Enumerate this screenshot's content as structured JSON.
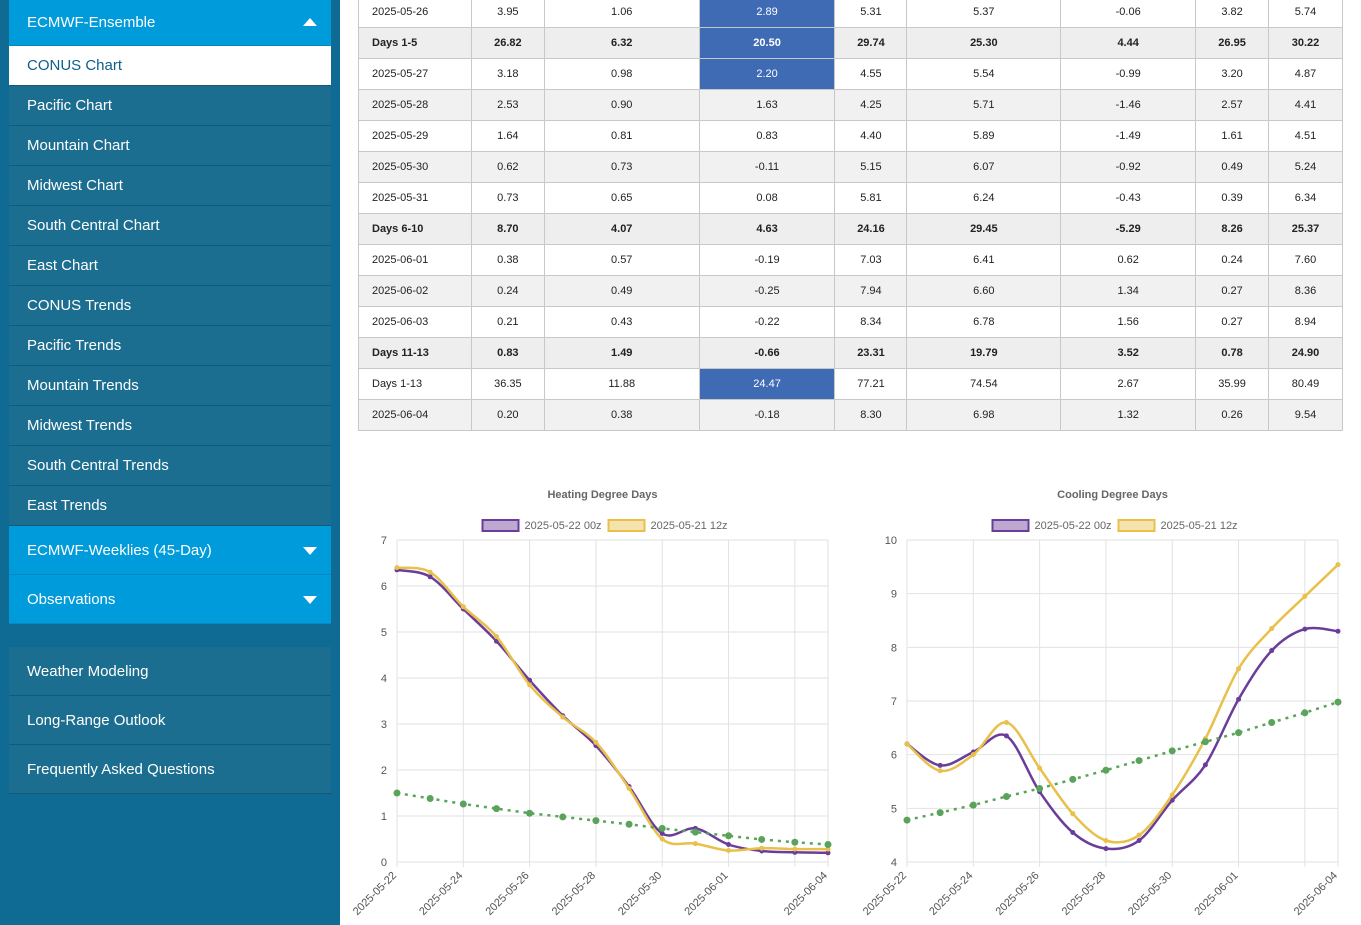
{
  "sidebar": {
    "header": "ECMWF-Ensemble",
    "active_item": "CONUS Chart",
    "items": [
      "Pacific Chart",
      "Mountain Chart",
      "Midwest Chart",
      "South Central Chart",
      "East Chart",
      "CONUS Trends",
      "Pacific Trends",
      "Mountain Trends",
      "Midwest Trends",
      "South Central Trends",
      "East Trends"
    ],
    "weeklies": "ECMWF-Weeklies (45-Day)",
    "observations": "Observations",
    "bottom_items": [
      "Weather Modeling",
      "Long-Range Outlook",
      "Frequently Asked Questions"
    ]
  },
  "table": {
    "rows": [
      {
        "cells": [
          "2025-05-26",
          "3.95",
          "1.06",
          "2.89",
          "5.31",
          "5.37",
          "-0.06",
          "3.82",
          "5.74"
        ],
        "kind": "normal",
        "hl": true
      },
      {
        "cells": [
          "Days 1-5",
          "26.82",
          "6.32",
          "20.50",
          "29.74",
          "25.30",
          "4.44",
          "26.95",
          "30.22"
        ],
        "kind": "sum",
        "hl": true
      },
      {
        "cells": [
          "2025-05-27",
          "3.18",
          "0.98",
          "2.20",
          "4.55",
          "5.54",
          "-0.99",
          "3.20",
          "4.87"
        ],
        "kind": "normal",
        "hl": true
      },
      {
        "cells": [
          "2025-05-28",
          "2.53",
          "0.90",
          "1.63",
          "4.25",
          "5.71",
          "-1.46",
          "2.57",
          "4.41"
        ],
        "kind": "alt",
        "hl": false
      },
      {
        "cells": [
          "2025-05-29",
          "1.64",
          "0.81",
          "0.83",
          "4.40",
          "5.89",
          "-1.49",
          "1.61",
          "4.51"
        ],
        "kind": "normal",
        "hl": false
      },
      {
        "cells": [
          "2025-05-30",
          "0.62",
          "0.73",
          "-0.11",
          "5.15",
          "6.07",
          "-0.92",
          "0.49",
          "5.24"
        ],
        "kind": "alt",
        "hl": false
      },
      {
        "cells": [
          "2025-05-31",
          "0.73",
          "0.65",
          "0.08",
          "5.81",
          "6.24",
          "-0.43",
          "0.39",
          "6.34"
        ],
        "kind": "normal",
        "hl": false
      },
      {
        "cells": [
          "Days 6-10",
          "8.70",
          "4.07",
          "4.63",
          "24.16",
          "29.45",
          "-5.29",
          "8.26",
          "25.37"
        ],
        "kind": "sum",
        "hl": false
      },
      {
        "cells": [
          "2025-06-01",
          "0.38",
          "0.57",
          "-0.19",
          "7.03",
          "6.41",
          "0.62",
          "0.24",
          "7.60"
        ],
        "kind": "normal",
        "hl": false
      },
      {
        "cells": [
          "2025-06-02",
          "0.24",
          "0.49",
          "-0.25",
          "7.94",
          "6.60",
          "1.34",
          "0.27",
          "8.36"
        ],
        "kind": "alt",
        "hl": false
      },
      {
        "cells": [
          "2025-06-03",
          "0.21",
          "0.43",
          "-0.22",
          "8.34",
          "6.78",
          "1.56",
          "0.27",
          "8.94"
        ],
        "kind": "normal",
        "hl": false
      },
      {
        "cells": [
          "Days 11-13",
          "0.83",
          "1.49",
          "-0.66",
          "23.31",
          "19.79",
          "3.52",
          "0.78",
          "24.90"
        ],
        "kind": "sum",
        "hl": false
      },
      {
        "cells": [
          "Days 1-13",
          "36.35",
          "11.88",
          "24.47",
          "77.21",
          "74.54",
          "2.67",
          "35.99",
          "80.49"
        ],
        "kind": "normal",
        "hl": true
      },
      {
        "cells": [
          "2025-06-04",
          "0.20",
          "0.38",
          "-0.18",
          "8.30",
          "6.98",
          "1.32",
          "0.26",
          "9.54"
        ],
        "kind": "alt",
        "hl": false
      }
    ]
  },
  "colors": {
    "purple": "#6a3d9a",
    "gold": "#e8c04a",
    "green": "#5aa35a",
    "highlight": "#3f6ab4",
    "sidebar": "#0f6b94",
    "accent": "#009bdb"
  },
  "chart_data": [
    {
      "type": "line",
      "title": "Heating Degree Days",
      "x": [
        "2025-05-22",
        "2025-05-23",
        "2025-05-24",
        "2025-05-25",
        "2025-05-26",
        "2025-05-27",
        "2025-05-28",
        "2025-05-29",
        "2025-05-30",
        "2025-05-31",
        "2025-06-01",
        "2025-06-02",
        "2025-06-03",
        "2025-06-04"
      ],
      "xticks": [
        "2025-05-22",
        "2025-05-24",
        "2025-05-26",
        "2025-05-28",
        "2025-05-30",
        "2025-06-01",
        "2025-06-04"
      ],
      "ylim": [
        0,
        7
      ],
      "yticks": [
        0,
        1,
        2,
        3,
        4,
        5,
        6,
        7
      ],
      "grid": true,
      "legend": "top",
      "series": [
        {
          "name": "2025-05-22 00z",
          "color": "#6a3d9a",
          "style": "solid",
          "values": [
            6.35,
            6.2,
            5.5,
            4.8,
            3.95,
            3.18,
            2.53,
            1.64,
            0.62,
            0.73,
            0.38,
            0.24,
            0.21,
            0.2
          ]
        },
        {
          "name": "2025-05-21 12z",
          "color": "#e8c04a",
          "style": "solid",
          "values": [
            6.4,
            6.3,
            5.55,
            4.9,
            3.85,
            3.15,
            2.6,
            1.6,
            0.5,
            0.4,
            0.25,
            0.3,
            0.28,
            0.28
          ]
        },
        {
          "color": "#5aa35a",
          "style": "dotted",
          "values": [
            1.5,
            1.38,
            1.26,
            1.16,
            1.06,
            0.98,
            0.9,
            0.82,
            0.73,
            0.65,
            0.57,
            0.49,
            0.43,
            0.38
          ]
        }
      ]
    },
    {
      "type": "line",
      "title": "Cooling Degree Days",
      "x": [
        "2025-05-22",
        "2025-05-23",
        "2025-05-24",
        "2025-05-25",
        "2025-05-26",
        "2025-05-27",
        "2025-05-28",
        "2025-05-29",
        "2025-05-30",
        "2025-05-31",
        "2025-06-01",
        "2025-06-02",
        "2025-06-03",
        "2025-06-04"
      ],
      "xticks": [
        "2025-05-22",
        "2025-05-24",
        "2025-05-26",
        "2025-05-28",
        "2025-05-30",
        "2025-06-01",
        "2025-06-04"
      ],
      "ylim": [
        4,
        10
      ],
      "yticks": [
        4,
        5,
        6,
        7,
        8,
        9,
        10
      ],
      "grid": true,
      "legend": "top",
      "series": [
        {
          "name": "2025-05-22 00z",
          "color": "#6a3d9a",
          "style": "solid",
          "values": [
            6.2,
            5.8,
            6.05,
            6.35,
            5.31,
            4.55,
            4.25,
            4.4,
            5.15,
            5.81,
            7.03,
            7.94,
            8.34,
            8.3
          ]
        },
        {
          "name": "2025-05-21 12z",
          "color": "#e8c04a",
          "style": "solid",
          "values": [
            6.2,
            5.7,
            6.0,
            6.6,
            5.75,
            4.9,
            4.4,
            4.5,
            5.25,
            6.3,
            7.6,
            8.35,
            8.95,
            9.54
          ]
        },
        {
          "color": "#5aa35a",
          "style": "dotted",
          "values": [
            4.78,
            4.92,
            5.06,
            5.22,
            5.37,
            5.54,
            5.71,
            5.89,
            6.07,
            6.24,
            6.41,
            6.6,
            6.78,
            6.98
          ]
        }
      ]
    }
  ]
}
